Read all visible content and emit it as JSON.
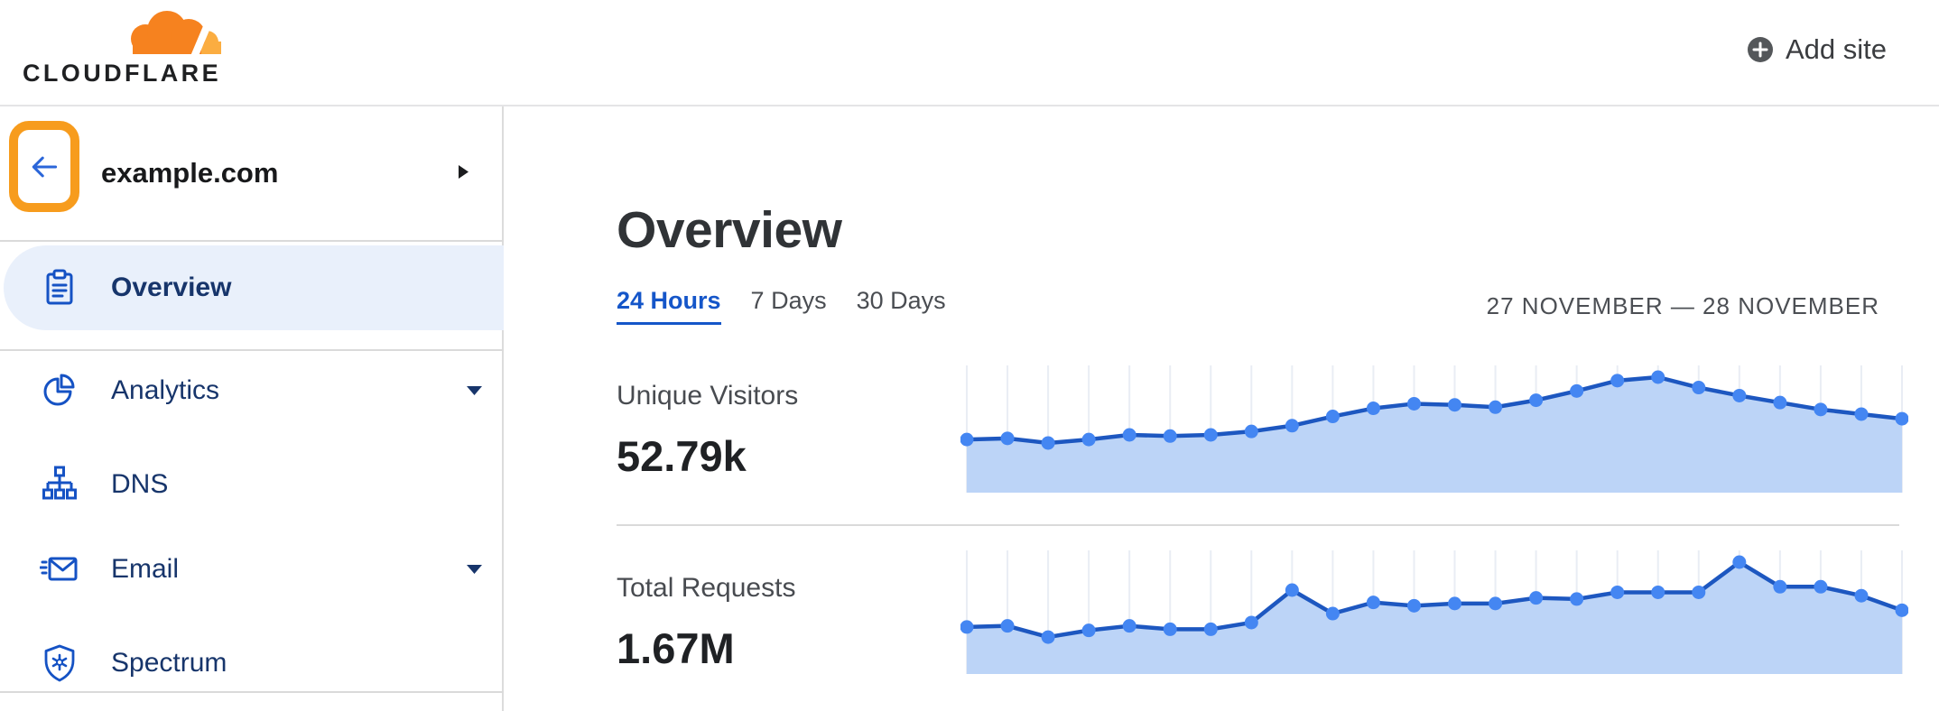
{
  "header": {
    "logo_text": "CLOUDFLARE",
    "add_site_label": "Add site"
  },
  "sidebar": {
    "zone_name": "example.com",
    "items": [
      {
        "label": "Overview",
        "icon": "clipboard-icon",
        "active": true,
        "expandable": false
      },
      {
        "label": "Analytics",
        "icon": "pie-chart-icon",
        "active": false,
        "expandable": true
      },
      {
        "label": "DNS",
        "icon": "sitemap-icon",
        "active": false,
        "expandable": false
      },
      {
        "label": "Email",
        "icon": "envelope-icon",
        "active": false,
        "expandable": true
      },
      {
        "label": "Spectrum",
        "icon": "shield-icon",
        "active": false,
        "expandable": false
      }
    ]
  },
  "main": {
    "title": "Overview",
    "tabs": [
      {
        "label": "24 Hours",
        "active": true
      },
      {
        "label": "7 Days",
        "active": false
      },
      {
        "label": "30 Days",
        "active": false
      }
    ],
    "date_range": "27 NOVEMBER — 28 NOVEMBER",
    "metrics": [
      {
        "label": "Unique Visitors",
        "value": "52.79k"
      },
      {
        "label": "Total Requests",
        "value": "1.67M"
      }
    ]
  },
  "chart_data": [
    {
      "type": "area",
      "title": "Unique Visitors",
      "total_label": "52.79k",
      "points": 24,
      "note": "y-axis unlabeled; values normalized to peak = 1.0; vertical gridline at each point",
      "ylim": [
        0,
        1
      ],
      "values_relative": [
        0.46,
        0.47,
        0.43,
        0.46,
        0.5,
        0.49,
        0.5,
        0.53,
        0.58,
        0.66,
        0.73,
        0.77,
        0.76,
        0.74,
        0.8,
        0.88,
        0.97,
        1.0,
        0.91,
        0.84,
        0.78,
        0.72,
        0.68,
        0.64
      ]
    },
    {
      "type": "area",
      "title": "Total Requests",
      "total_label": "1.67M",
      "points": 24,
      "note": "y-axis unlabeled; values normalized to peak = 1.0; vertical gridline at each point",
      "ylim": [
        0,
        1
      ],
      "values_relative": [
        0.42,
        0.43,
        0.33,
        0.39,
        0.43,
        0.4,
        0.4,
        0.46,
        0.75,
        0.54,
        0.64,
        0.61,
        0.63,
        0.63,
        0.68,
        0.67,
        0.73,
        0.73,
        0.73,
        1.0,
        0.78,
        0.78,
        0.7,
        0.57
      ]
    }
  ],
  "colors": {
    "brand_orange": "#F6821F",
    "brand_orange_light": "#FBAD41",
    "highlight_ring_orange": "#F79C1D",
    "link_blue": "#1556C9",
    "nav_navy": "#17356B",
    "icon_blue": "#1552C4",
    "active_item_bg": "#E9F0FB",
    "chart_line": "#1D57C0",
    "chart_dot": "#4486F2",
    "chart_fill": "#BCD4F7",
    "chart_grid": "#E9EDF4"
  }
}
